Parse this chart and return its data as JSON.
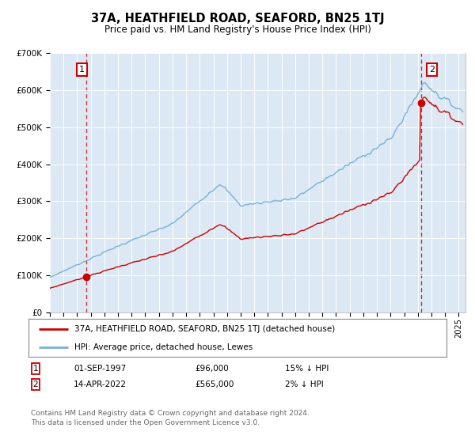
{
  "title": "37A, HEATHFIELD ROAD, SEAFORD, BN25 1TJ",
  "subtitle": "Price paid vs. HM Land Registry's House Price Index (HPI)",
  "legend_line1": "37A, HEATHFIELD ROAD, SEAFORD, BN25 1TJ (detached house)",
  "legend_line2": "HPI: Average price, detached house, Lewes",
  "sale1_date": "01-SEP-1997",
  "sale1_price": 96000,
  "sale1_hpi": "15% ↓ HPI",
  "sale2_date": "14-APR-2022",
  "sale2_price": 565000,
  "sale2_hpi": "2% ↓ HPI",
  "footer": "Contains HM Land Registry data © Crown copyright and database right 2024.\nThis data is licensed under the Open Government Licence v3.0.",
  "hpi_color": "#7ab0d4",
  "price_color": "#cc0000",
  "vline_color": "#cc0000",
  "background_color": "#dce9f5",
  "ylim": [
    0,
    700000
  ],
  "xlim_start": 1995.0,
  "xlim_end": 2025.5,
  "sale1_year": 1997.667,
  "sale2_year": 2022.25
}
